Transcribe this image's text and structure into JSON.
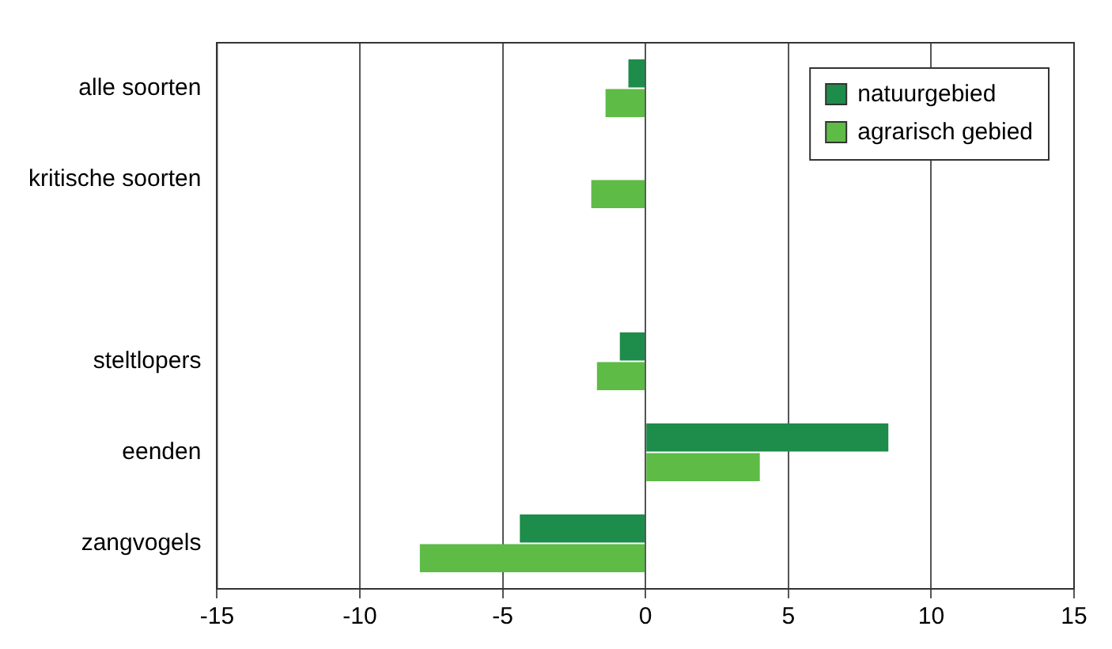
{
  "chart_data": {
    "type": "bar",
    "orientation": "horizontal",
    "categories": [
      "alle soorten",
      "kritische soorten",
      null,
      "steltlopers",
      "eenden",
      "zangvogels"
    ],
    "series": [
      {
        "name": "natuurgebied",
        "color": "#1e8c4a",
        "values": [
          -0.6,
          null,
          null,
          -0.9,
          8.5,
          -4.4
        ]
      },
      {
        "name": "agrarisch gebied",
        "color": "#5dbb46",
        "values": [
          -1.4,
          -1.9,
          null,
          -1.7,
          4,
          -7.9
        ]
      }
    ],
    "xlim": [
      -15,
      15
    ],
    "xticks": [
      -15,
      -10,
      -5,
      0,
      5,
      10,
      15
    ],
    "grid": "x",
    "legend": "top right"
  }
}
